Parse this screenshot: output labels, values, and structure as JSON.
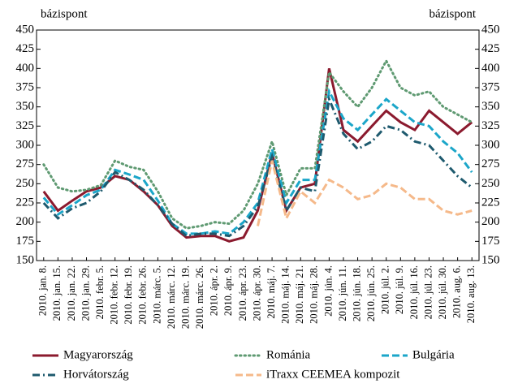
{
  "chart_data": {
    "type": "line",
    "y_label": "bázispont",
    "y2_label": "bázispont",
    "categories": [
      "2010. jan. 8.",
      "2010. jan. 15.",
      "2010. jan. 22.",
      "2010. jan. 29.",
      "2010. febr. 5.",
      "2010. febr. 12.",
      "2010. febr. 19.",
      "2010. febr. 26.",
      "2010. márc. 5.",
      "2010. márc. 12.",
      "2010. márc. 19.",
      "2010. márc. 26.",
      "2010. ápr. 2.",
      "2010. ápr. 9.",
      "2010. ápr. 23.",
      "2010. ápr. 30.",
      "2010. máj. 7.",
      "2010. máj. 14.",
      "2010. máj. 21.",
      "2010. máj. 28.",
      "2010. jún. 4.",
      "2010. jún. 11.",
      "2010. jún. 18.",
      "2010. jún. 25.",
      "2010. júl. 2.",
      "2010. júl. 9.",
      "2010. júl. 16.",
      "2010. júl. 23.",
      "2010. júl. 30.",
      "2010. aug. 6.",
      "2010. aug. 13."
    ],
    "series": [
      {
        "name": "Magyarország",
        "color": "#8b1a2e",
        "dash": "solid",
        "values": [
          240,
          215,
          228,
          240,
          245,
          260,
          255,
          240,
          222,
          195,
          180,
          182,
          182,
          175,
          180,
          215,
          290,
          215,
          245,
          250,
          400,
          320,
          305,
          325,
          345,
          330,
          320,
          345,
          330,
          315,
          330
        ]
      },
      {
        "name": "Románia",
        "color": "#5f9a72",
        "dash": "dotted",
        "values": [
          275,
          245,
          240,
          242,
          248,
          280,
          272,
          268,
          240,
          205,
          192,
          195,
          200,
          198,
          215,
          250,
          305,
          235,
          270,
          270,
          395,
          370,
          350,
          375,
          410,
          375,
          365,
          370,
          350,
          340,
          330
        ]
      },
      {
        "name": "Bulgária",
        "color": "#1ba6c9",
        "dash": "dashed",
        "values": [
          232,
          210,
          222,
          235,
          242,
          268,
          262,
          255,
          228,
          198,
          185,
          185,
          188,
          185,
          200,
          225,
          295,
          225,
          255,
          255,
          370,
          335,
          320,
          340,
          360,
          345,
          330,
          325,
          305,
          290,
          265
        ]
      },
      {
        "name": "Horvátország",
        "color": "#1e5a6e",
        "dash": "dashdot",
        "values": [
          225,
          205,
          218,
          225,
          240,
          265,
          255,
          242,
          222,
          198,
          182,
          185,
          185,
          182,
          195,
          220,
          285,
          215,
          245,
          240,
          360,
          315,
          295,
          305,
          325,
          320,
          305,
          300,
          280,
          260,
          245
        ]
      },
      {
        "name": "iTraxx CEEMEA kompozit",
        "color": "#f5b98a",
        "dash": "dashed",
        "values": [
          null,
          null,
          null,
          null,
          null,
          null,
          null,
          null,
          null,
          null,
          null,
          null,
          null,
          null,
          null,
          195,
          280,
          205,
          240,
          225,
          255,
          245,
          230,
          235,
          250,
          245,
          230,
          230,
          215,
          210,
          215
        ]
      }
    ],
    "ylim": [
      150,
      450
    ],
    "yticks": [
      150,
      175,
      200,
      225,
      250,
      275,
      300,
      325,
      350,
      375,
      400,
      425,
      450
    ],
    "y2lim": [
      150,
      450
    ],
    "y2ticks": [
      150,
      175,
      200,
      225,
      250,
      275,
      300,
      325,
      350,
      375,
      400,
      425,
      450
    ],
    "grid": false
  }
}
